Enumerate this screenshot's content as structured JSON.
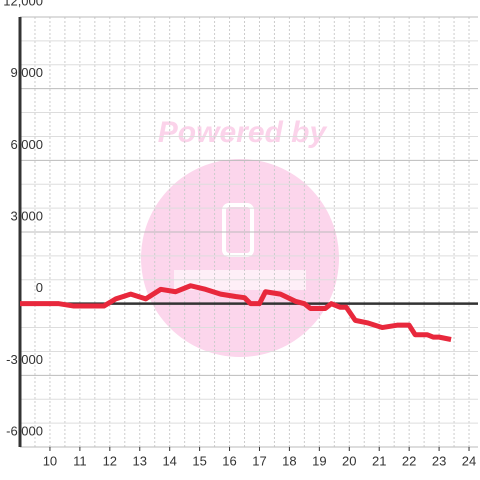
{
  "chart_data": {
    "type": "line",
    "watermark": "Powered by",
    "x": [
      9,
      10.3,
      10.8,
      11.8,
      12.2,
      12.7,
      13.2,
      13.7,
      14.2,
      14.7,
      15.2,
      15.7,
      16.2,
      16.5,
      16.7,
      17,
      17.2,
      17.7,
      18.2,
      18.5,
      18.7,
      19.2,
      19.4,
      19.7,
      19.9,
      20.2,
      20.6,
      21.1,
      21.6,
      22,
      22.2,
      22.6,
      22.8,
      23,
      23.4
    ],
    "series": [
      {
        "color": "#e8283c",
        "values": [
          0,
          0,
          -100,
          -100,
          200,
          400,
          200,
          600,
          500,
          750,
          600,
          400,
          300,
          250,
          0,
          0,
          500,
          400,
          100,
          0,
          -200,
          -200,
          0,
          -150,
          -150,
          -700,
          -800,
          -1000,
          -900,
          -900,
          -1300,
          -1300,
          -1400,
          -1400,
          -1500
        ]
      }
    ],
    "xlim": [
      9,
      24.3
    ],
    "xticks": [
      10,
      11,
      12,
      13,
      14,
      15,
      16,
      17,
      18,
      19,
      20,
      21,
      22,
      23,
      24
    ],
    "x_minor_grid": [
      9.5,
      10,
      10.5,
      11,
      11.5,
      12,
      12.5,
      13,
      13.5,
      14,
      14.5,
      15,
      15.5,
      16,
      16.5,
      17,
      17.5,
      18,
      18.5,
      19,
      19.5,
      20,
      20.5,
      21,
      21.5,
      22,
      22.5,
      23,
      23.5,
      24
    ],
    "ylim": [
      -6000,
      12000
    ],
    "yticks": [
      {
        "value": -6000,
        "label": "-6,000"
      },
      {
        "value": -3000,
        "label": "-3,000"
      },
      0,
      {
        "value": 3000,
        "label": "3,000"
      },
      {
        "value": 6000,
        "label": "6,000"
      },
      {
        "value": 9000,
        "label": "9,000"
      },
      {
        "value": 12000,
        "label": "12,000"
      }
    ],
    "y_minor_grid": [
      -5000,
      -4000,
      -2000,
      -1000,
      1000,
      2000,
      4000,
      5000,
      7000,
      8000,
      10000,
      11000
    ],
    "grid": true
  }
}
